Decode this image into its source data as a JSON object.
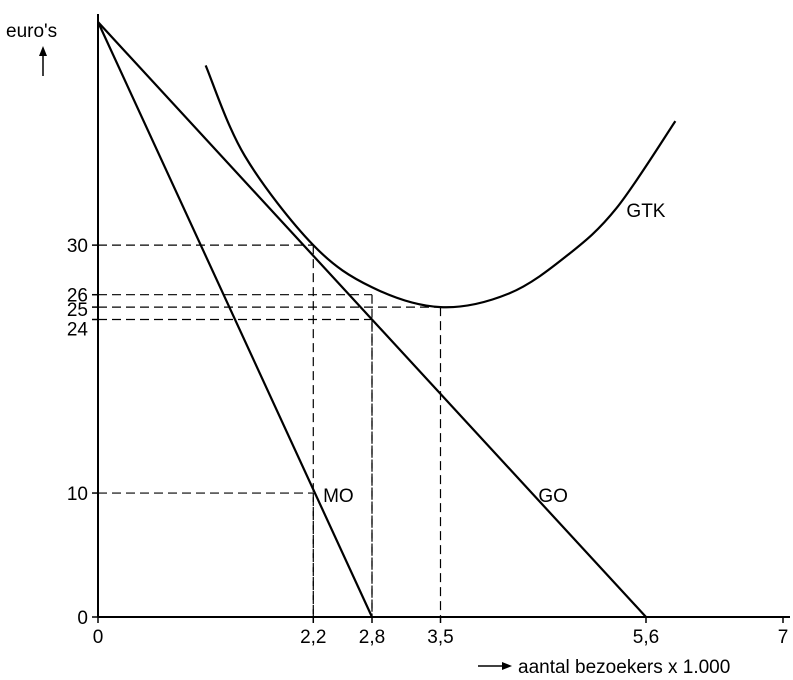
{
  "chart_data": {
    "type": "line",
    "ylabel": "euro's",
    "xlabel": "aantal bezoekers x 1.000",
    "xlim": [
      0,
      7
    ],
    "ylim": [
      0,
      48
    ],
    "x_ticks": [
      "0",
      "2,2",
      "2,8",
      "3,5",
      "5,6",
      "7"
    ],
    "x_tick_values": [
      0,
      2.2,
      2.8,
      3.5,
      5.6,
      7
    ],
    "y_ticks": [
      "0",
      "10",
      "24",
      "25",
      "26",
      "30"
    ],
    "y_tick_values": [
      0,
      10,
      24,
      25,
      26,
      30
    ],
    "series": [
      {
        "name": "GO",
        "x": [
          0,
          5.6
        ],
        "y": [
          48,
          0
        ]
      },
      {
        "name": "MO",
        "x": [
          0,
          2.8
        ],
        "y": [
          48,
          0
        ]
      },
      {
        "name": "GTK",
        "x": [
          1.1,
          1.5,
          2.2,
          2.8,
          3.5,
          4.2,
          4.8,
          5.3,
          5.9
        ],
        "y": [
          44.5,
          37.2,
          30,
          26.6,
          25,
          26.1,
          29.2,
          33,
          40
        ]
      }
    ],
    "guides": [
      {
        "x": 2.2,
        "y": 30
      },
      {
        "x": 2.2,
        "y": 10
      },
      {
        "x": 2.8,
        "y": 26
      },
      {
        "x": 2.8,
        "y": 24
      },
      {
        "x": 3.5,
        "y": 25
      }
    ],
    "annotations": [
      {
        "text": "GTK",
        "x": 5.4,
        "y": 33
      },
      {
        "text": "MO",
        "x": 2.3,
        "y": 10
      },
      {
        "text": "GO",
        "x": 4.5,
        "y": 10
      }
    ]
  }
}
